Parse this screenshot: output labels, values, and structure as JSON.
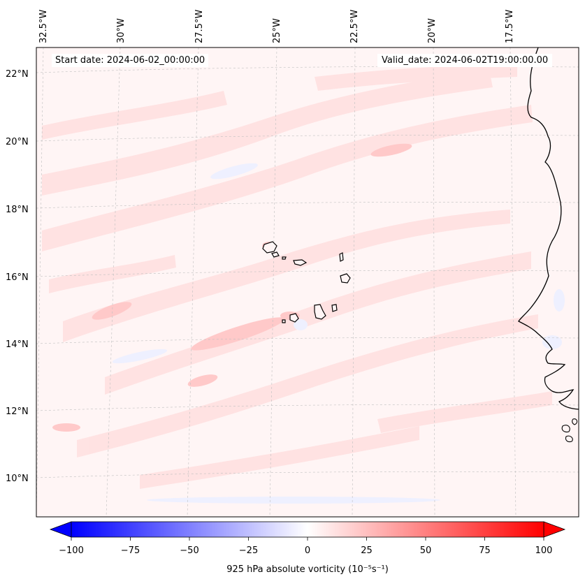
{
  "map": {
    "start_date_label": "Start date: 2024-06-02_00:00:00",
    "valid_date_label": "Valid_date: 2024-06-02T19:00:00.00",
    "lat_labels": [
      "22°N",
      "20°N",
      "18°N",
      "16°N",
      "14°N",
      "12°N",
      "10°N"
    ],
    "lon_labels": [
      "32.5°W",
      "30°W",
      "27.5°W",
      "25°W",
      "22.5°W",
      "20°W",
      "17.5°W"
    ],
    "field_colors": {
      "background": "#fff5f5",
      "positive_weak": "#ffe0e0",
      "positive_mid": "#ffc9c9",
      "negative_weak": "#eef0ff",
      "coast": "#000000"
    }
  },
  "colorbar": {
    "title": "925 hPa absolute vorticity (10⁻⁵s⁻¹)",
    "ticks": [
      "−100",
      "−75",
      "−50",
      "−25",
      "0",
      "25",
      "50",
      "75",
      "100"
    ],
    "min": -100,
    "max": 100,
    "cmap": "bwr",
    "colors": {
      "negative": "#0000ff",
      "zero": "#ffffff",
      "positive": "#ff0000"
    }
  }
}
